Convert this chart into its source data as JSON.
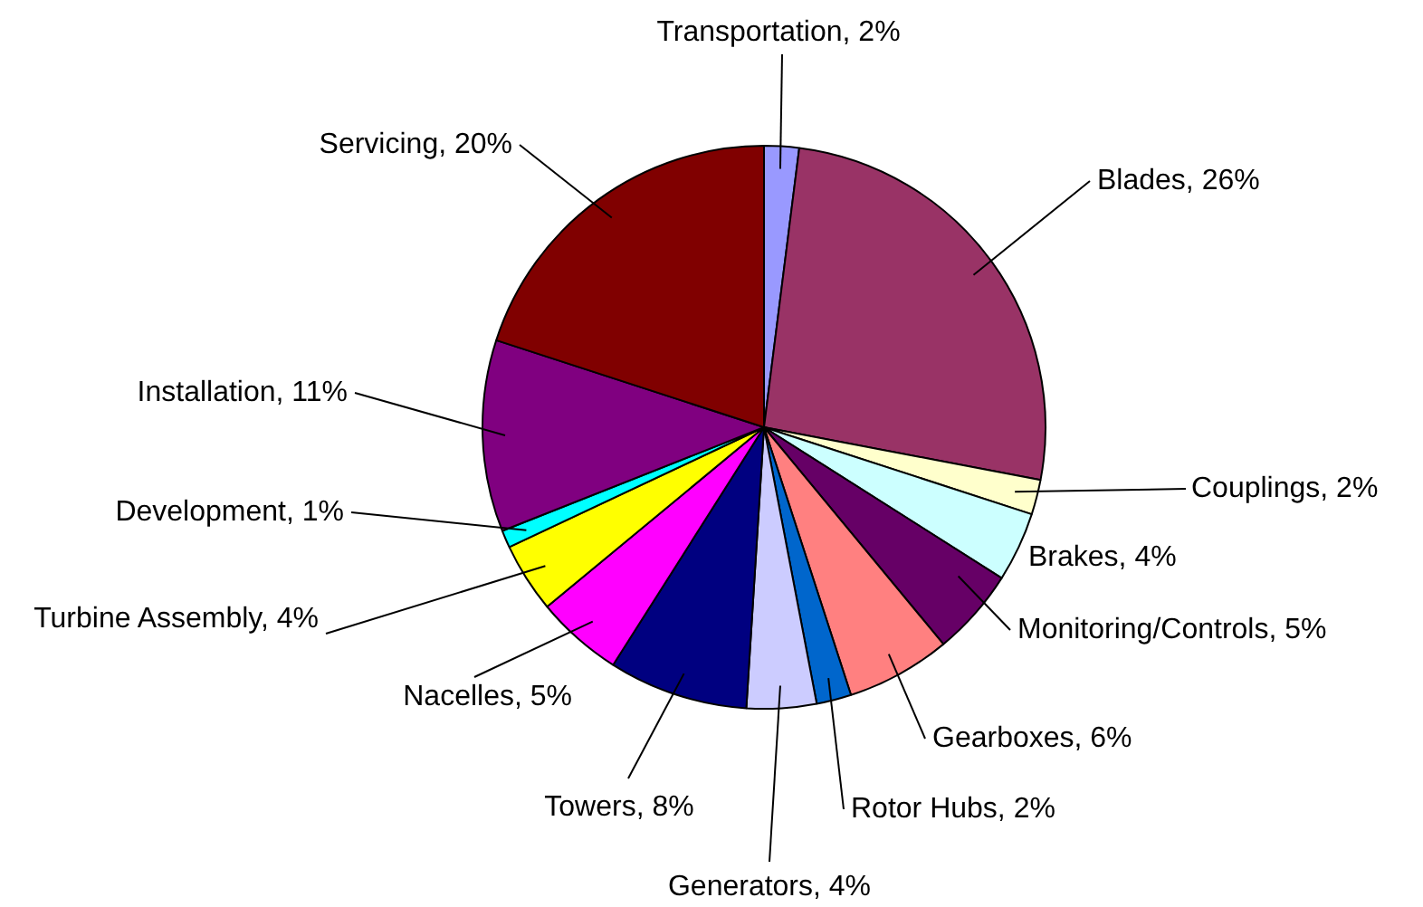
{
  "chart_data": {
    "type": "pie",
    "categories": [
      "Transportation",
      "Blades",
      "Couplings",
      "Brakes",
      "Monitoring/Controls",
      "Gearboxes",
      "Rotor Hubs",
      "Generators",
      "Towers",
      "Nacelles",
      "Turbine Assembly",
      "Development",
      "Installation",
      "Servicing"
    ],
    "values": [
      2,
      26,
      2,
      4,
      5,
      6,
      2,
      4,
      8,
      5,
      4,
      1,
      11,
      20
    ],
    "value_labels": [
      "2%",
      "26%",
      "2%",
      "4%",
      "5%",
      "6%",
      "2%",
      "4%",
      "8%",
      "5%",
      "4%",
      "1%",
      "11%",
      "20%"
    ],
    "colors": [
      "#9999ff",
      "#993366",
      "#ffffcc",
      "#ccffff",
      "#660066",
      "#ff8080",
      "#0066cc",
      "#ccccff",
      "#000080",
      "#ff00ff",
      "#ffff00",
      "#00ffff",
      "#800080",
      "#800000"
    ],
    "legend": false
  }
}
